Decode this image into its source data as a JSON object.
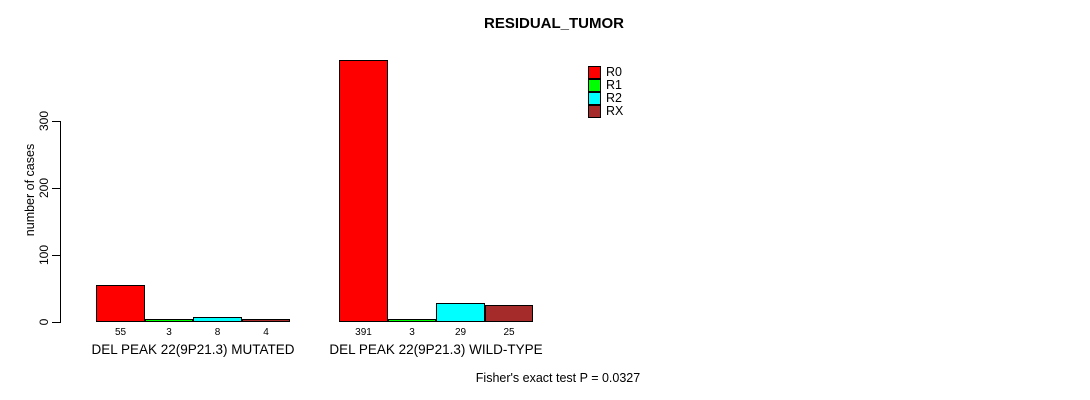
{
  "chart_data": {
    "type": "bar",
    "title": "RESIDUAL_TUMOR",
    "ylabel": "number of cases",
    "xlabel": "",
    "yticks": [
      0,
      100,
      200,
      300
    ],
    "ylim": [
      0,
      300
    ],
    "grid": false,
    "legend_position": "top-right",
    "categories": [
      "DEL PEAK 22(9P21.3) MUTATED",
      "DEL PEAK 22(9P21.3) WILD-TYPE"
    ],
    "series": [
      {
        "name": "R0",
        "color": "#FF0000",
        "values": [
          55,
          391
        ]
      },
      {
        "name": "R1",
        "color": "#00FF00",
        "values": [
          3,
          3
        ]
      },
      {
        "name": "R2",
        "color": "#00FFFF",
        "values": [
          8,
          29
        ]
      },
      {
        "name": "RX",
        "color": "#A52A2A",
        "values": [
          4,
          25
        ]
      }
    ],
    "bar_value_labels_shown": true,
    "annotation": "Fisher's exact test P = 0.0327"
  }
}
